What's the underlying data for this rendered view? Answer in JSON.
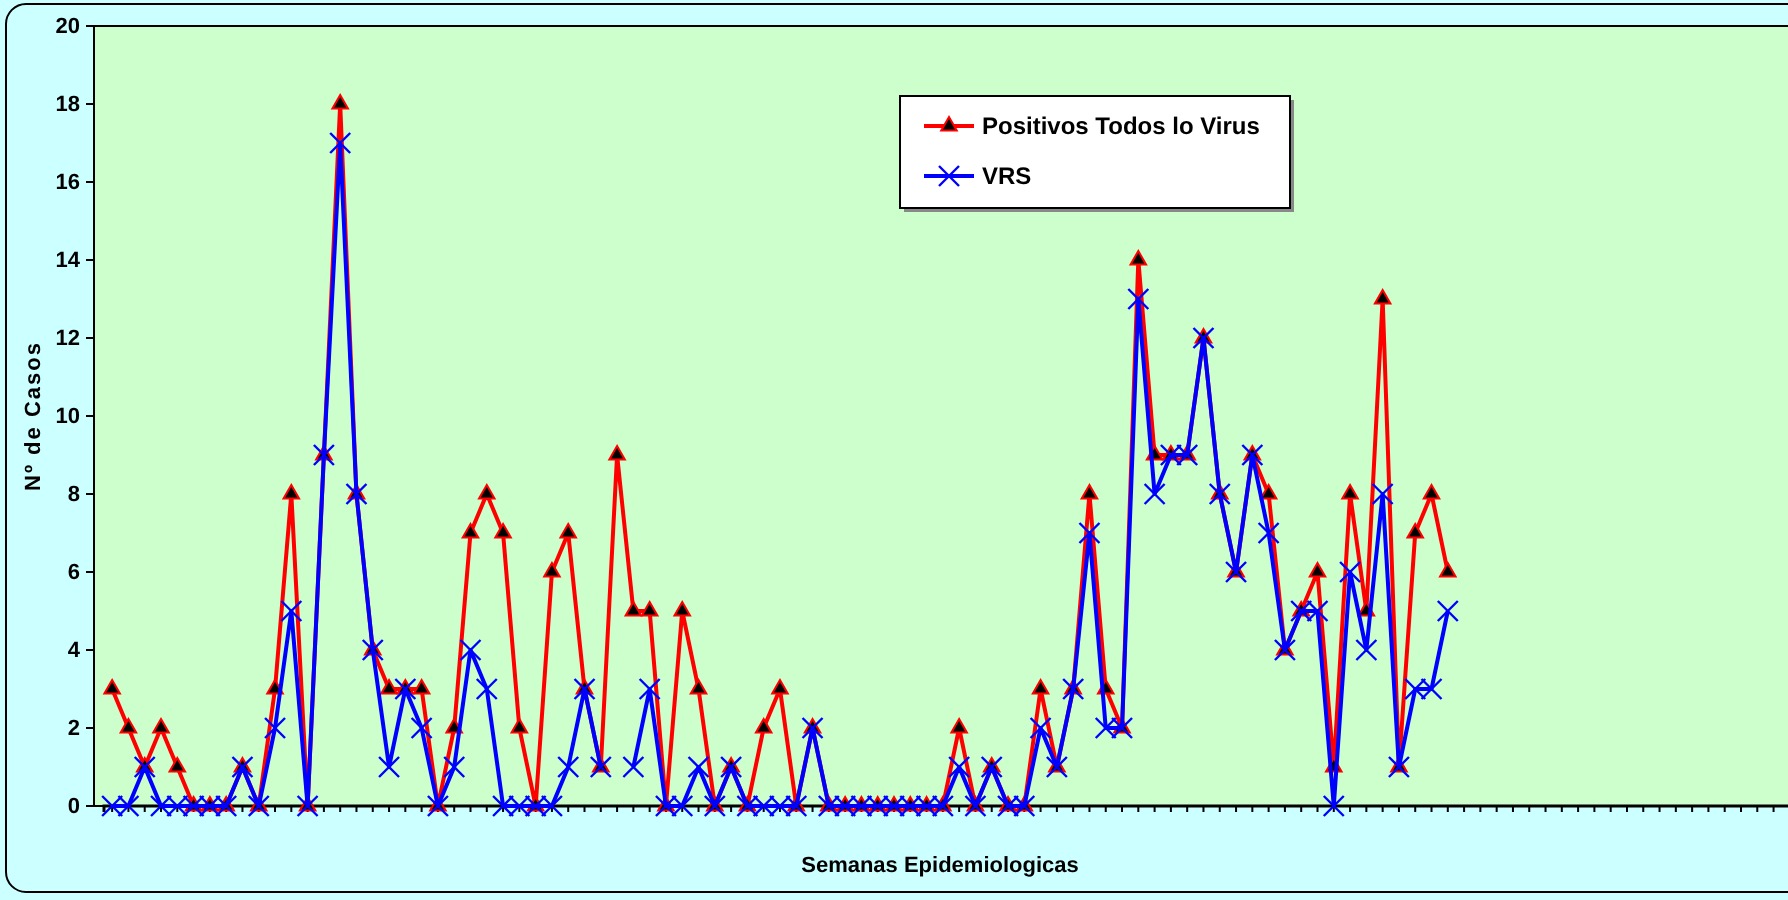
{
  "chart_data": {
    "type": "line",
    "xlabel": "Semanas Epidemiologicas",
    "ylabel": "Nº de Casos",
    "categories": [
      null,
      null,
      null,
      null,
      null,
      null,
      null,
      null,
      null,
      null,
      null,
      null,
      null,
      null,
      null,
      null,
      null,
      null,
      null,
      null,
      null,
      null,
      null,
      null,
      null,
      null,
      null,
      null,
      null,
      null,
      null,
      null,
      null,
      null,
      null,
      null,
      null,
      null,
      null,
      null,
      null,
      null,
      null,
      null,
      null,
      null,
      null,
      null,
      null,
      null,
      null,
      null,
      null,
      null,
      null,
      null,
      null,
      null,
      null,
      null,
      null,
      null,
      null,
      null,
      null,
      null,
      null,
      null,
      null,
      null,
      null,
      null,
      null,
      null,
      null,
      null,
      null,
      null,
      null,
      null,
      null,
      null,
      null,
      null,
      null,
      null,
      null,
      null,
      null,
      null,
      null,
      null,
      null,
      null,
      null,
      null,
      null,
      null,
      null,
      null,
      null,
      null,
      null,
      null
    ],
    "ylim": [
      0,
      20
    ],
    "yticks": [
      0,
      2,
      4,
      6,
      8,
      10,
      12,
      14,
      16,
      18,
      20
    ],
    "grid": false,
    "legend": "top right",
    "series": [
      {
        "name": "Positivos Todos lo Virus",
        "color": "#ff0000",
        "marker": "triangle",
        "values": [
          3,
          2,
          1,
          2,
          1,
          0,
          0,
          0,
          1,
          0,
          3,
          8,
          0,
          9,
          18,
          8,
          4,
          3,
          3,
          3,
          0,
          2,
          7,
          8,
          7,
          2,
          0,
          6,
          7,
          3,
          1,
          9,
          5,
          5,
          0,
          5,
          3,
          0,
          1,
          0,
          2,
          3,
          0,
          2,
          0,
          0,
          0,
          0,
          0,
          0,
          0,
          0,
          2,
          0,
          1,
          0,
          0,
          3,
          1,
          3,
          8,
          3,
          2,
          14,
          9,
          9,
          9,
          12,
          8,
          6,
          9,
          8,
          4,
          5,
          6,
          1,
          8,
          5,
          13,
          1,
          7,
          8,
          6,
          null,
          null,
          null,
          null,
          null,
          null,
          null,
          null,
          null,
          null,
          null,
          null,
          null,
          null,
          null,
          null,
          null,
          null,
          null,
          null,
          null
        ]
      },
      {
        "name": "VRS",
        "color": "#0000ff",
        "marker": "cross",
        "values": [
          0,
          0,
          1,
          0,
          0,
          0,
          0,
          0,
          1,
          0,
          2,
          5,
          0,
          9,
          17,
          8,
          4,
          1,
          3,
          2,
          0,
          1,
          4,
          3,
          0,
          0,
          0,
          0,
          1,
          3,
          1,
          null,
          1,
          3,
          0,
          0,
          1,
          0,
          1,
          0,
          0,
          0,
          0,
          2,
          0,
          0,
          0,
          0,
          0,
          0,
          0,
          0,
          1,
          0,
          1,
          0,
          0,
          2,
          1,
          3,
          7,
          2,
          2,
          13,
          8,
          9,
          9,
          12,
          8,
          6,
          9,
          7,
          4,
          5,
          5,
          0,
          6,
          4,
          8,
          1,
          3,
          3,
          5,
          null,
          null,
          null,
          null,
          null,
          null,
          null,
          null,
          null,
          null,
          null,
          null,
          null,
          null,
          null,
          null,
          null,
          null,
          null,
          null,
          null
        ]
      }
    ]
  }
}
